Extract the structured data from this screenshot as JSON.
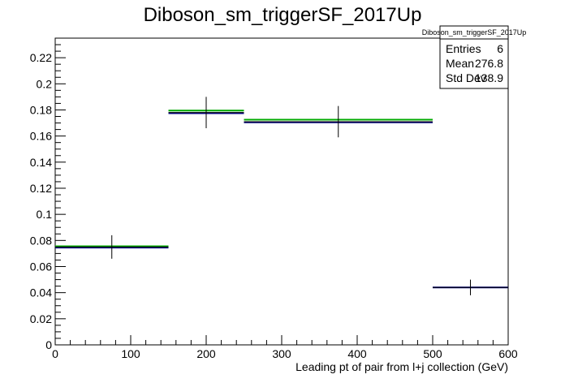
{
  "chart_data": {
    "type": "histogram",
    "title": "Diboson_sm_triggerSF_2017Up",
    "xlabel": "Leading pt of pair from l+j collection (GeV)",
    "ylabel": "",
    "xlim": [
      0,
      600
    ],
    "ylim": [
      0,
      0.235
    ],
    "x_ticks": [
      0,
      100,
      200,
      300,
      400,
      500,
      600
    ],
    "y_ticks": [
      0,
      0.02,
      0.04,
      0.06,
      0.08,
      0.1,
      0.12,
      0.14,
      0.16,
      0.18,
      0.2,
      0.22
    ],
    "x_tick_labels": [
      "0",
      "100",
      "200",
      "300",
      "400",
      "500",
      "600"
    ],
    "y_tick_labels": [
      "0",
      "0.02",
      "0.04",
      "0.06",
      "0.08",
      "0.1",
      "0.12",
      "0.14",
      "0.16",
      "0.18",
      "0.2",
      "0.22"
    ],
    "bins": [
      {
        "low": 0,
        "high": 150,
        "center": 75,
        "value": 0.075,
        "error": 0.009
      },
      {
        "low": 150,
        "high": 250,
        "center": 200,
        "value": 0.178,
        "error": 0.012
      },
      {
        "low": 250,
        "high": 500,
        "center": 375,
        "value": 0.171,
        "error": 0.012
      },
      {
        "low": 500,
        "high": 600,
        "center": 550,
        "value": 0.044,
        "error": 0.006
      }
    ],
    "overlay_lines": [
      {
        "color": "#00aa00",
        "values": [
          0.0755,
          0.1795,
          0.1725,
          null
        ]
      },
      {
        "color": "#000080",
        "values": [
          0.0745,
          0.1775,
          0.1705,
          0.044
        ]
      }
    ],
    "grid": false,
    "legend": "none",
    "stats_box": {
      "title": "Diboson_sm_triggerSF_2017Up",
      "rows": [
        {
          "label": "Entries",
          "value": "6"
        },
        {
          "label": "Mean",
          "value": "276.8"
        },
        {
          "label": "Std Dev",
          "value": "138.9"
        }
      ]
    }
  }
}
